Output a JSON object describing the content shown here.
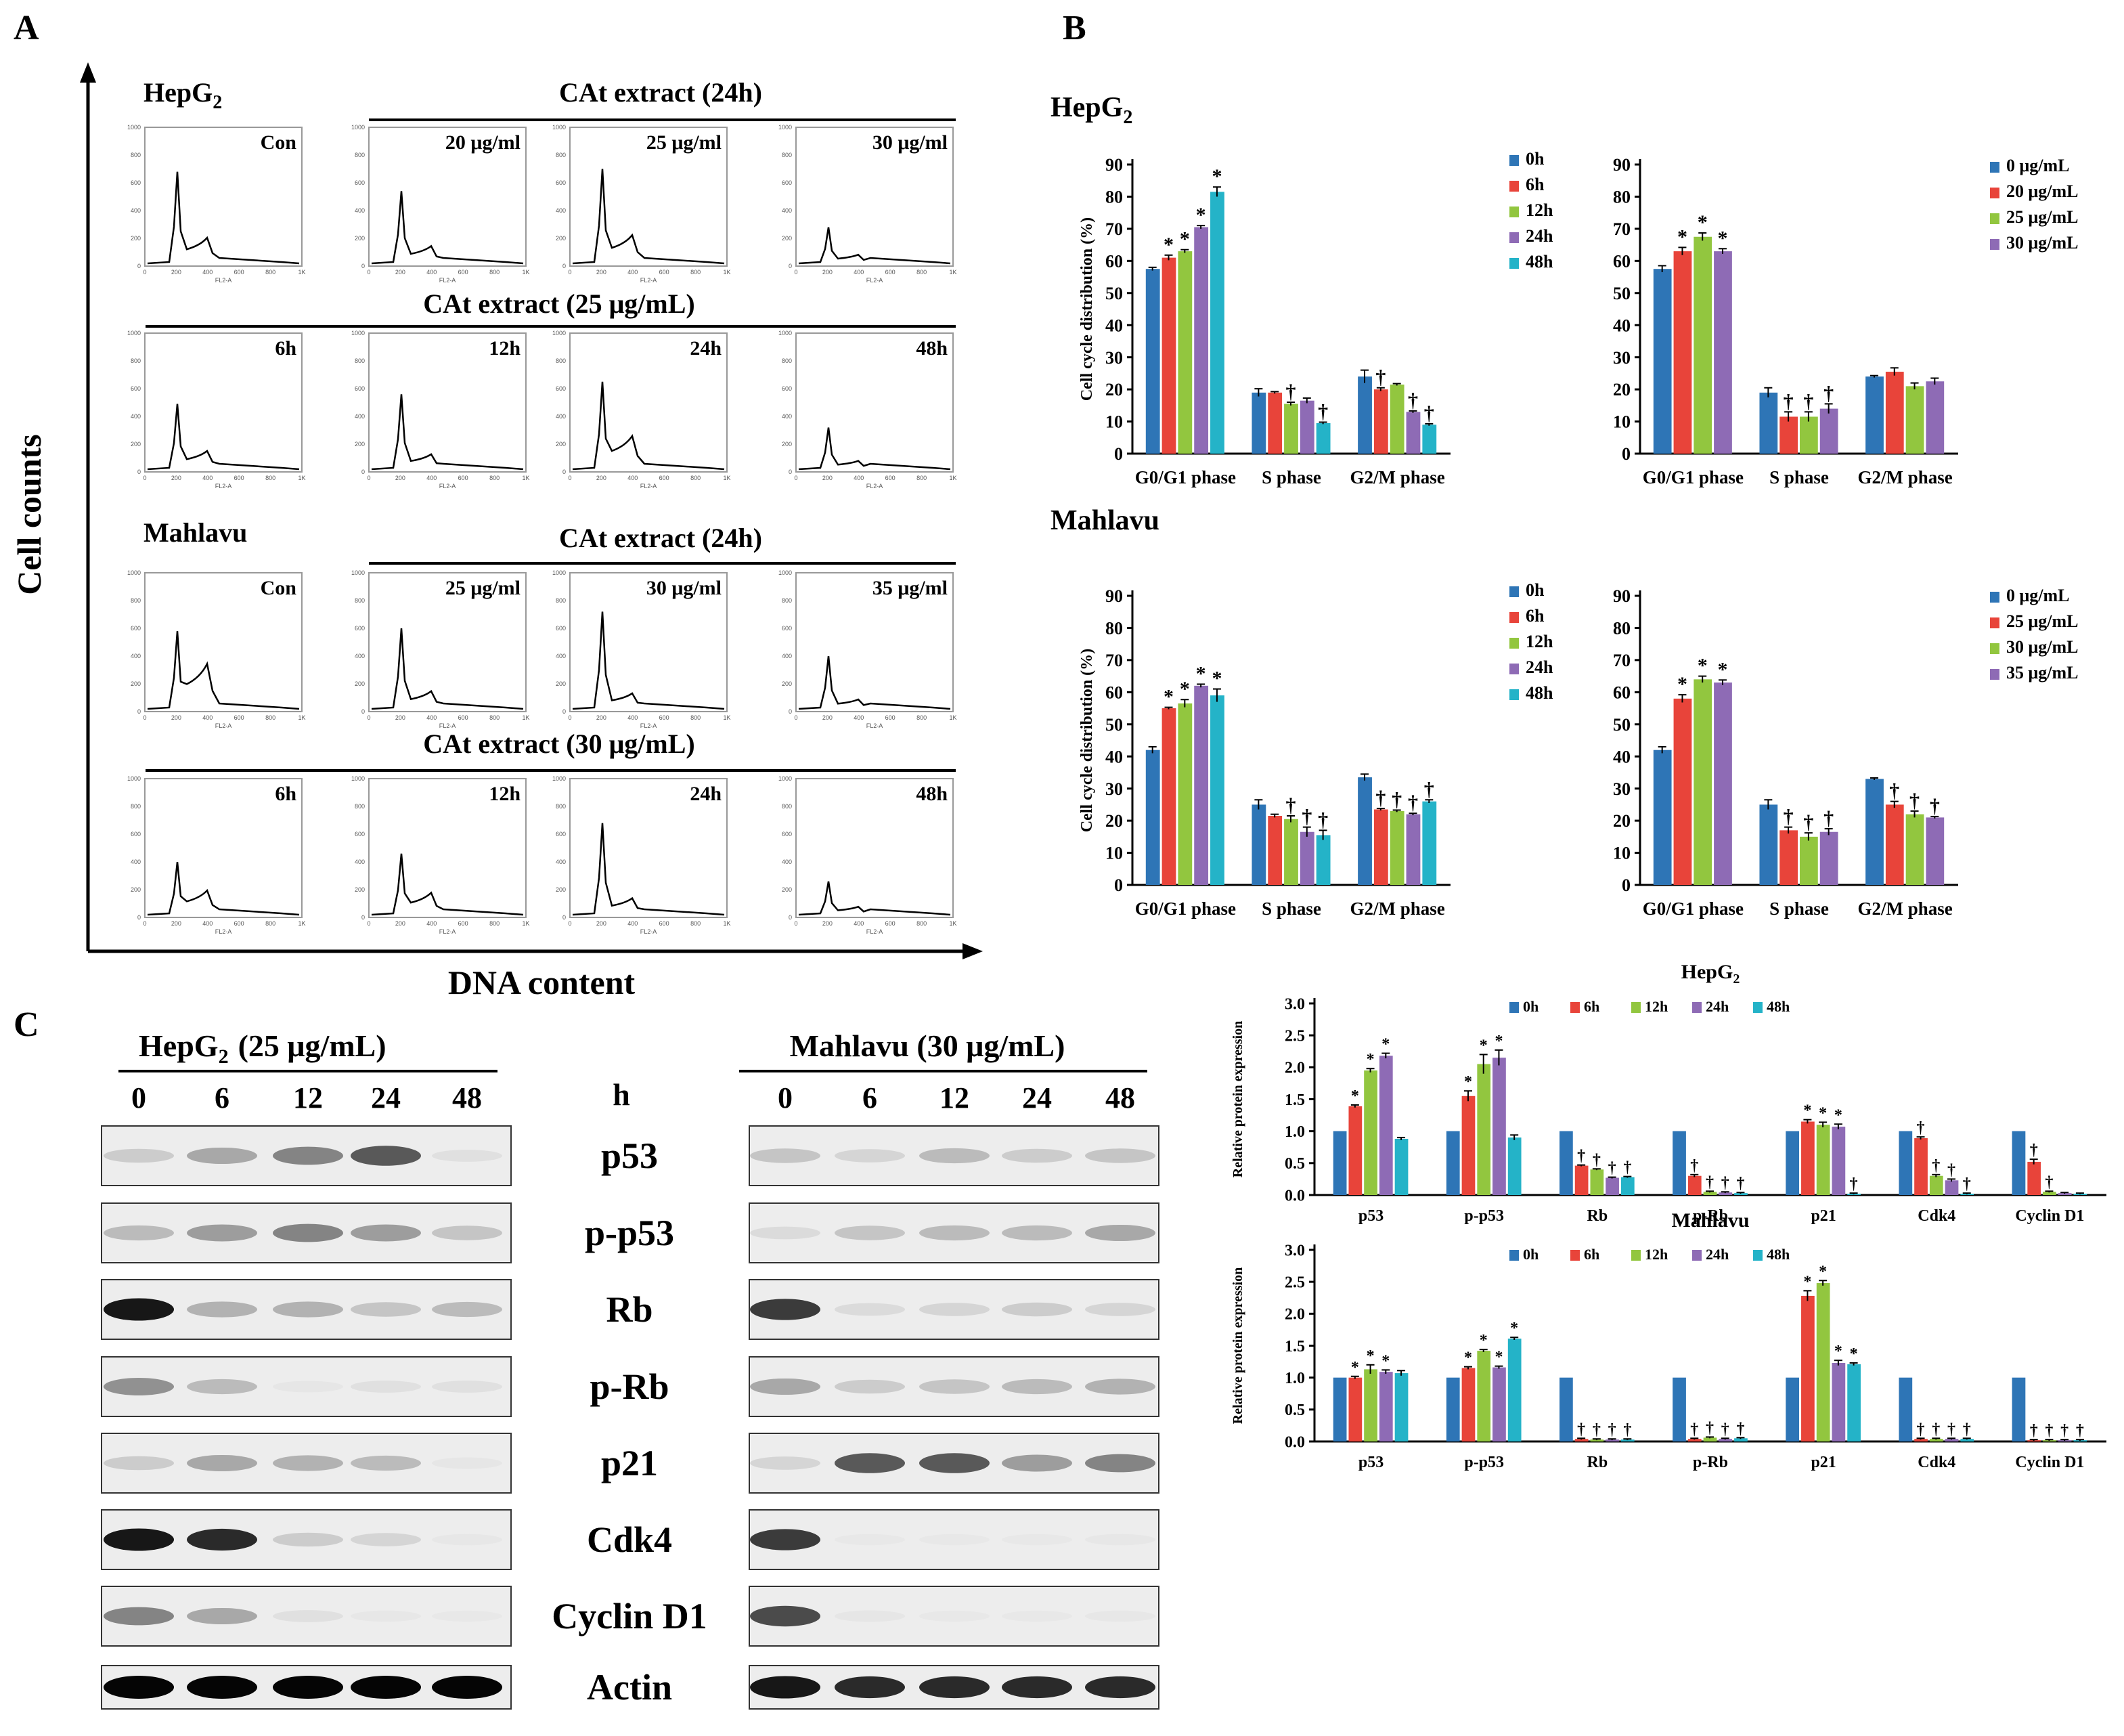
{
  "figure": {
    "panel_a": "A",
    "panel_b": "B",
    "panel_c": "C",
    "y_axis_label": "Cell counts",
    "x_axis_label": "DNA content"
  },
  "panel_a": {
    "hepg2": {
      "cell_line": "HepG",
      "cell_line_sub": "2",
      "con_label": "Con",
      "dose_header": "CAt extract (24h)",
      "dose_labels": [
        "20 μg/ml",
        "25 μg/ml",
        "30 μg/ml"
      ],
      "time_header": "CAt extract (25 μg/mL)",
      "time_labels": [
        "6h",
        "12h",
        "24h",
        "48h"
      ]
    },
    "mahlavu": {
      "cell_line": "Mahlavu",
      "con_label": "Con",
      "dose_header": "CAt extract (24h)",
      "dose_labels": [
        "25 μg/ml",
        "30 μg/ml",
        "35 μg/ml"
      ],
      "time_header": "CAt extract (30 μg/mL)",
      "time_labels": [
        "6h",
        "12h",
        "24h",
        "48h"
      ]
    },
    "hist_axis": {
      "y_ticks": [
        "0",
        "200",
        "400",
        "600",
        "800",
        "1000"
      ],
      "x_ticks": [
        "0",
        "200",
        "400",
        "600",
        "800",
        "1K"
      ],
      "x_label": "FL2-A"
    }
  },
  "panel_b": {
    "hepg2_title": "HepG",
    "hepg2_sub": "2",
    "mahlavu_title": "Mahlavu"
  },
  "panel_c": {
    "hepg2_header": "HepG",
    "hepg2_sub": "2",
    "hepg2_dose": "(25 μg/mL)",
    "mahlavu_header": "Mahlavu (30 μg/mL)",
    "time_labels": [
      "0",
      "6",
      "12",
      "24",
      "48"
    ],
    "unit": "h",
    "proteins": [
      "p53",
      "p-p53",
      "Rb",
      "p-Rb",
      "p21",
      "Cdk4",
      "Cyclin D1",
      "Actin"
    ],
    "blot_intensity_hepg2": [
      [
        0.25,
        0.45,
        0.6,
        0.75,
        0.1
      ],
      [
        0.35,
        0.5,
        0.6,
        0.5,
        0.3
      ],
      [
        0.95,
        0.4,
        0.4,
        0.3,
        0.35
      ],
      [
        0.55,
        0.35,
        0.05,
        0.1,
        0.1
      ],
      [
        0.25,
        0.45,
        0.4,
        0.35,
        0.05
      ],
      [
        0.95,
        0.9,
        0.25,
        0.2,
        0.03
      ],
      [
        0.6,
        0.45,
        0.1,
        0.03,
        0.02
      ],
      [
        1.0,
        1.0,
        1.0,
        1.0,
        1.0
      ]
    ],
    "blot_intensity_mahlavu": [
      [
        0.3,
        0.2,
        0.35,
        0.25,
        0.3
      ],
      [
        0.15,
        0.3,
        0.35,
        0.35,
        0.45
      ],
      [
        0.85,
        0.15,
        0.2,
        0.25,
        0.2
      ],
      [
        0.45,
        0.25,
        0.3,
        0.35,
        0.4
      ],
      [
        0.2,
        0.75,
        0.75,
        0.5,
        0.6
      ],
      [
        0.85,
        0.02,
        0.02,
        0.02,
        0.03
      ],
      [
        0.8,
        0.05,
        0.02,
        0.02,
        0.03
      ],
      [
        0.95,
        0.9,
        0.9,
        0.9,
        0.9
      ]
    ]
  },
  "colors": {
    "blue": "#2E75B6",
    "red": "#E8443A",
    "green": "#92C63F",
    "purple": "#8E6BB5",
    "cyan": "#24B3C8"
  },
  "chart_data": [
    {
      "id": "hepg2_time",
      "type": "bar",
      "title": "",
      "ylabel": "Cell cycle distribution (%)",
      "ylim": [
        0,
        90
      ],
      "yticks": [
        0,
        10,
        20,
        30,
        40,
        50,
        60,
        70,
        80,
        90
      ],
      "categories": [
        "G0/G1 phase",
        "S phase",
        "G2/M phase"
      ],
      "series": [
        {
          "name": "0h",
          "values": [
            57.5,
            19,
            24
          ],
          "errors": [
            0.5,
            1.2,
            2
          ]
        },
        {
          "name": "6h",
          "values": [
            61,
            19,
            20
          ],
          "errors": [
            0.8,
            0.3,
            0.5
          ]
        },
        {
          "name": "12h",
          "values": [
            63,
            15.5,
            21.5
          ],
          "errors": [
            0.5,
            0.5,
            0.3
          ]
        },
        {
          "name": "24h",
          "values": [
            70.5,
            16.5,
            13
          ],
          "errors": [
            0.5,
            0.8,
            0.3
          ]
        },
        {
          "name": "48h",
          "values": [
            81.5,
            9.5,
            9
          ],
          "errors": [
            1.5,
            0.3,
            0.3
          ]
        }
      ],
      "annotations": [
        [
          "*",
          "*",
          "*",
          "*"
        ],
        [
          "",
          "†",
          "",
          "†"
        ],
        [
          "†",
          "",
          "†",
          "†"
        ]
      ],
      "legend_position": "top-right"
    },
    {
      "id": "hepg2_dose",
      "type": "bar",
      "title": "",
      "ylabel": "",
      "ylim": [
        0,
        90
      ],
      "yticks": [
        0,
        10,
        20,
        30,
        40,
        50,
        60,
        70,
        80,
        90
      ],
      "categories": [
        "G0/G1 phase",
        "S phase",
        "G2/M phase"
      ],
      "series": [
        {
          "name": "0 μg/mL",
          "values": [
            57.5,
            19,
            24
          ],
          "errors": [
            1,
            1.5,
            0.3
          ]
        },
        {
          "name": "20 μg/mL",
          "values": [
            63,
            11.5,
            25.5
          ],
          "errors": [
            1.2,
            1.5,
            1.2
          ]
        },
        {
          "name": "25 μg/mL",
          "values": [
            67.5,
            11.5,
            21
          ],
          "errors": [
            1.2,
            1.5,
            1
          ]
        },
        {
          "name": "30 μg/mL",
          "values": [
            63,
            14,
            22.5
          ],
          "errors": [
            0.8,
            1.5,
            1
          ]
        }
      ],
      "annotations": [
        [
          "*",
          "*",
          "*"
        ],
        [
          "†",
          "†",
          "†"
        ],
        [
          "",
          "",
          ""
        ]
      ],
      "legend_position": "top-right"
    },
    {
      "id": "mahlavu_time",
      "type": "bar",
      "title": "",
      "ylabel": "Cell cycle distribution (%)",
      "ylim": [
        0,
        90
      ],
      "yticks": [
        0,
        10,
        20,
        30,
        40,
        50,
        60,
        70,
        80,
        90
      ],
      "categories": [
        "G0/G1 phase",
        "S phase",
        "G2/M phase"
      ],
      "series": [
        {
          "name": "0h",
          "values": [
            42,
            25,
            33.5
          ],
          "errors": [
            1,
            1.5,
            1
          ]
        },
        {
          "name": "6h",
          "values": [
            55,
            21.5,
            23.5
          ],
          "errors": [
            0.3,
            0.5,
            0.3
          ]
        },
        {
          "name": "12h",
          "values": [
            56.5,
            20.5,
            23
          ],
          "errors": [
            1.2,
            1,
            0.3
          ]
        },
        {
          "name": "24h",
          "values": [
            62,
            16.5,
            22
          ],
          "errors": [
            0.5,
            1.5,
            0.3
          ]
        },
        {
          "name": "48h",
          "values": [
            59,
            15.5,
            26
          ],
          "errors": [
            2,
            1.5,
            0.5
          ]
        }
      ],
      "annotations": [
        [
          "*",
          "*",
          "*",
          "*"
        ],
        [
          "",
          "†",
          "†",
          "†"
        ],
        [
          "†",
          "†",
          "†",
          "†"
        ]
      ],
      "legend_position": "top-right"
    },
    {
      "id": "mahlavu_dose",
      "type": "bar",
      "title": "",
      "ylabel": "",
      "ylim": [
        0,
        90
      ],
      "yticks": [
        0,
        10,
        20,
        30,
        40,
        50,
        60,
        70,
        80,
        90
      ],
      "categories": [
        "G0/G1 phase",
        "S phase",
        "G2/M phase"
      ],
      "series": [
        {
          "name": "0 μg/mL",
          "values": [
            42,
            25,
            33
          ],
          "errors": [
            1,
            1.5,
            0.3
          ]
        },
        {
          "name": "25 μg/mL",
          "values": [
            58,
            17,
            25
          ],
          "errors": [
            1.2,
            1,
            1
          ]
        },
        {
          "name": "30 μg/mL",
          "values": [
            64,
            15,
            22
          ],
          "errors": [
            1,
            1.2,
            1
          ]
        },
        {
          "name": "35 μg/mL",
          "values": [
            63,
            16.5,
            21
          ],
          "errors": [
            0.8,
            1,
            0.3
          ]
        }
      ],
      "annotations": [
        [
          "*",
          "*",
          "*"
        ],
        [
          "†",
          "†",
          "†"
        ],
        [
          "†",
          "†",
          "†"
        ]
      ],
      "legend_position": "top-right"
    },
    {
      "id": "hepg2_protein",
      "type": "bar",
      "title": "HepG",
      "title_sub": "2",
      "ylabel": "Relative protein expression",
      "ylim": [
        0,
        3
      ],
      "yticks": [
        0,
        0.5,
        1.0,
        1.5,
        2.0,
        2.5,
        3.0
      ],
      "categories": [
        "p53",
        "p-p53",
        "Rb",
        "p-Rb",
        "p21",
        "Cdk4",
        "Cyclin D1"
      ],
      "series": [
        {
          "name": "0h",
          "values": [
            1,
            1,
            1,
            1,
            1,
            1,
            1
          ],
          "errors": [
            0,
            0,
            0,
            0,
            0,
            0,
            0
          ]
        },
        {
          "name": "6h",
          "values": [
            1.39,
            1.55,
            0.46,
            0.3,
            1.15,
            0.89,
            0.52
          ],
          "errors": [
            0.02,
            0.08,
            0.01,
            0.02,
            0.03,
            0.02,
            0.04
          ]
        },
        {
          "name": "12h",
          "values": [
            1.95,
            2.05,
            0.4,
            0.05,
            1.1,
            0.3,
            0.05
          ],
          "errors": [
            0.03,
            0.15,
            0.01,
            0.01,
            0.04,
            0.02,
            0.01
          ]
        },
        {
          "name": "24h",
          "values": [
            2.18,
            2.15,
            0.27,
            0.04,
            1.07,
            0.23,
            0.03
          ],
          "errors": [
            0.04,
            0.12,
            0.01,
            0.01,
            0.04,
            0.02,
            0.01
          ]
        },
        {
          "name": "48h",
          "values": [
            0.88,
            0.9,
            0.28,
            0.03,
            0.02,
            0.02,
            0.02
          ],
          "errors": [
            0.02,
            0.04,
            0.01,
            0.01,
            0.01,
            0.01,
            0.01
          ]
        }
      ],
      "annotations": [
        [
          "*",
          "*",
          "*",
          ""
        ],
        [
          "*",
          "*",
          "*",
          ""
        ],
        [
          "†",
          "†",
          "†",
          "†"
        ],
        [
          "†",
          "†",
          "†",
          "†"
        ],
        [
          "*",
          "*",
          "*",
          "†"
        ],
        [
          "†",
          "†",
          "†",
          "†"
        ],
        [
          "†",
          "†",
          "",
          ""
        ]
      ],
      "legend_position": "top"
    },
    {
      "id": "mahlavu_protein",
      "type": "bar",
      "title": "Mahlavu",
      "ylabel": "Relative protein expression",
      "ylim": [
        0,
        3
      ],
      "yticks": [
        0,
        0.5,
        1.0,
        1.5,
        2.0,
        2.5,
        3.0
      ],
      "categories": [
        "p53",
        "p-p53",
        "Rb",
        "p-Rb",
        "p21",
        "Cdk4",
        "Cyclin D1"
      ],
      "series": [
        {
          "name": "0h",
          "values": [
            1,
            1,
            1,
            1,
            1,
            1,
            1
          ],
          "errors": [
            0,
            0,
            0,
            0,
            0,
            0,
            0
          ]
        },
        {
          "name": "6h",
          "values": [
            1.0,
            1.15,
            0.04,
            0.04,
            2.28,
            0.04,
            0.02
          ],
          "errors": [
            0.02,
            0.02,
            0.01,
            0.01,
            0.08,
            0.01,
            0.01
          ]
        },
        {
          "name": "12h",
          "values": [
            1.13,
            1.42,
            0.03,
            0.06,
            2.48,
            0.04,
            0.02
          ],
          "errors": [
            0.07,
            0.02,
            0.01,
            0.01,
            0.04,
            0.01,
            0.01
          ]
        },
        {
          "name": "24h",
          "values": [
            1.09,
            1.16,
            0.03,
            0.04,
            1.23,
            0.04,
            0.02
          ],
          "errors": [
            0.03,
            0.02,
            0.01,
            0.01,
            0.04,
            0.01,
            0.01
          ]
        },
        {
          "name": "48h",
          "values": [
            1.07,
            1.61,
            0.03,
            0.05,
            1.21,
            0.04,
            0.02
          ],
          "errors": [
            0.04,
            0.02,
            0.01,
            0.01,
            0.02,
            0.01,
            0.01
          ]
        }
      ],
      "annotations": [
        [
          "*",
          "*",
          "*",
          ""
        ],
        [
          "*",
          "*",
          "*",
          "*"
        ],
        [
          "†",
          "†",
          "†",
          "†"
        ],
        [
          "†",
          "†",
          "†",
          "†"
        ],
        [
          "*",
          "*",
          "*",
          "*"
        ],
        [
          "†",
          "†",
          "†",
          "†"
        ],
        [
          "†",
          "†",
          "†",
          "†"
        ]
      ],
      "legend_position": "top"
    }
  ]
}
